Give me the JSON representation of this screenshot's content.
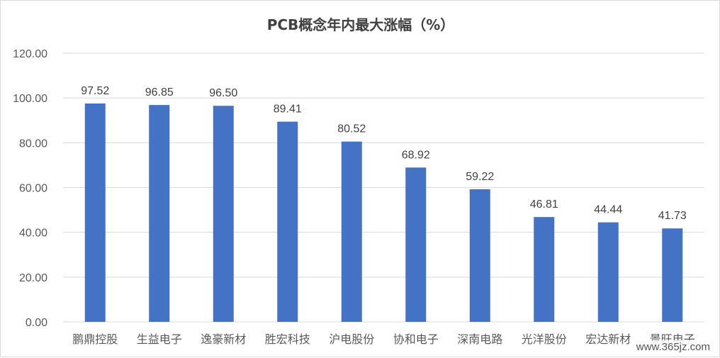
{
  "chart_data": {
    "type": "bar",
    "title": "PCB概念年内最大涨幅（%）",
    "categories": [
      "鹏鼎控股",
      "生益电子",
      "逸豪新材",
      "胜宏科技",
      "沪电股份",
      "协和电子",
      "深南电路",
      "光洋股份",
      "宏达新材",
      "景旺电子"
    ],
    "values": [
      97.52,
      96.85,
      96.5,
      89.41,
      80.52,
      68.92,
      59.22,
      46.81,
      44.44,
      41.73
    ],
    "data_labels": [
      "97.52",
      "96.85",
      "96.50",
      "89.41",
      "80.52",
      "68.92",
      "59.22",
      "46.81",
      "44.44",
      "41.73"
    ],
    "y_ticks": [
      "0.00",
      "20.00",
      "40.00",
      "60.00",
      "80.00",
      "100.00",
      "120.00"
    ],
    "ylim": [
      0,
      120
    ],
    "grid": true,
    "legend": "none",
    "bar_color": "#4472c4"
  },
  "watermark": "www.365jz.com"
}
